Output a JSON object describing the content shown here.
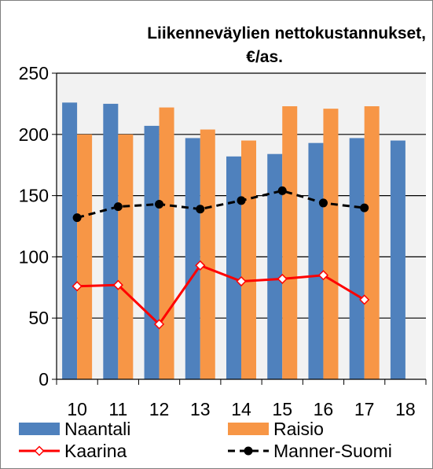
{
  "chart_data": {
    "type": "bar",
    "title": "Liikenneväylien nettokustannukset, €/as.",
    "title_lines": [
      "Liikenneväylien nettokustannukset,",
      "€/as."
    ],
    "categories": [
      "10",
      "11",
      "12",
      "13",
      "14",
      "15",
      "16",
      "17",
      "18"
    ],
    "ylim": [
      0,
      250
    ],
    "yticks": [
      0,
      50,
      100,
      150,
      200,
      250
    ],
    "grid": "horizontal",
    "legend_placement": "bottom",
    "series": [
      {
        "name": "Naantali",
        "kind": "bar",
        "color": "#4f81bd",
        "values": [
          226,
          225,
          207,
          197,
          182,
          184,
          193,
          197,
          195
        ]
      },
      {
        "name": "Raisio",
        "kind": "bar",
        "color": "#f79646",
        "values": [
          200,
          200,
          222,
          204,
          195,
          223,
          221,
          223,
          null
        ]
      },
      {
        "name": "Kaarina",
        "kind": "line",
        "color": "#ff0000",
        "marker": "diamond-open",
        "values": [
          76,
          77,
          45,
          93,
          80,
          82,
          85,
          65,
          null
        ]
      },
      {
        "name": "Manner-Suomi",
        "kind": "line",
        "color": "#000000",
        "marker": "circle-filled",
        "dash": true,
        "values": [
          132,
          141,
          143,
          139,
          146,
          154,
          144,
          140,
          null
        ]
      }
    ]
  }
}
